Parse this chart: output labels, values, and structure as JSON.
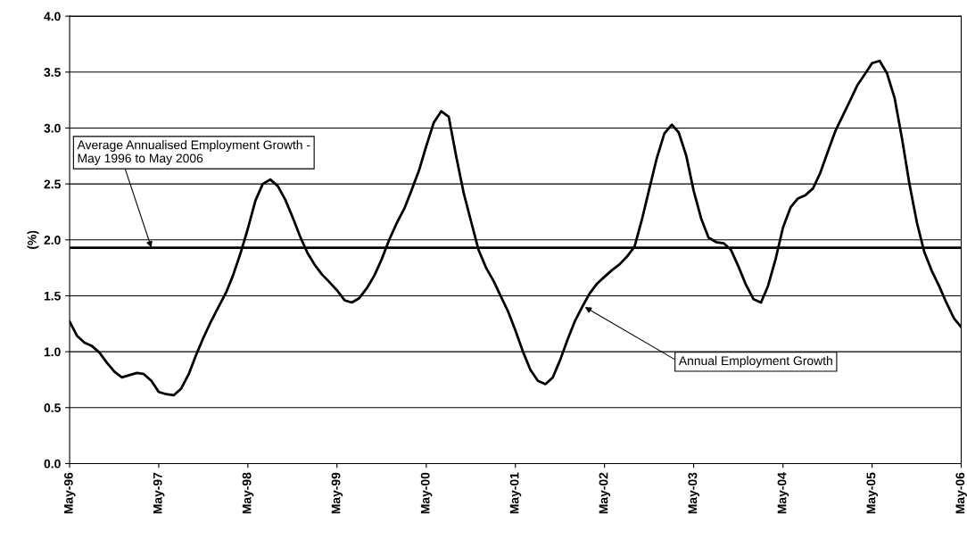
{
  "chart_data": {
    "type": "line",
    "ylabel": "(%)",
    "x": [
      "1996-05",
      "1996-06",
      "1996-07",
      "1996-08",
      "1996-09",
      "1996-10",
      "1996-11",
      "1996-12",
      "1997-01",
      "1997-02",
      "1997-03",
      "1997-04",
      "1997-05",
      "1997-06",
      "1997-07",
      "1997-08",
      "1997-09",
      "1997-10",
      "1997-11",
      "1997-12",
      "1998-01",
      "1998-02",
      "1998-03",
      "1998-04",
      "1998-05",
      "1998-06",
      "1998-07",
      "1998-08",
      "1998-09",
      "1998-10",
      "1998-11",
      "1998-12",
      "1999-01",
      "1999-02",
      "1999-03",
      "1999-04",
      "1999-05",
      "1999-06",
      "1999-07",
      "1999-08",
      "1999-09",
      "1999-10",
      "1999-11",
      "1999-12",
      "2000-01",
      "2000-02",
      "2000-03",
      "2000-04",
      "2000-05",
      "2000-06",
      "2000-07",
      "2000-08",
      "2000-09",
      "2000-10",
      "2000-11",
      "2000-12",
      "2001-01",
      "2001-02",
      "2001-03",
      "2001-04",
      "2001-05",
      "2001-06",
      "2001-07",
      "2001-08",
      "2001-09",
      "2001-10",
      "2001-11",
      "2001-12",
      "2002-01",
      "2002-02",
      "2002-03",
      "2002-04",
      "2002-05",
      "2002-06",
      "2002-07",
      "2002-08",
      "2002-09",
      "2002-10",
      "2002-11",
      "2002-12",
      "2003-01",
      "2003-02",
      "2003-03",
      "2003-04",
      "2003-05",
      "2003-06",
      "2003-07",
      "2003-08",
      "2003-09",
      "2003-10",
      "2003-11",
      "2003-12",
      "2004-01",
      "2004-02",
      "2004-03",
      "2004-04",
      "2004-05",
      "2004-06",
      "2004-07",
      "2004-08",
      "2004-09",
      "2004-10",
      "2004-11",
      "2004-12",
      "2005-01",
      "2005-02",
      "2005-03",
      "2005-04",
      "2005-05",
      "2005-06",
      "2005-07",
      "2005-08",
      "2005-09",
      "2005-10",
      "2005-11",
      "2005-12",
      "2006-01",
      "2006-02",
      "2006-03",
      "2006-04",
      "2006-05"
    ],
    "series": [
      {
        "color": "#000000",
        "values": [
          1.27,
          1.14,
          1.08,
          1.05,
          0.99,
          0.9,
          0.82,
          0.77,
          0.79,
          0.81,
          0.8,
          0.74,
          0.64,
          0.62,
          0.61,
          0.67,
          0.8,
          0.97,
          1.13,
          1.27,
          1.4,
          1.53,
          1.68,
          1.88,
          2.1,
          2.35,
          2.5,
          2.54,
          2.48,
          2.36,
          2.2,
          2.03,
          1.88,
          1.77,
          1.69,
          1.62,
          1.55,
          1.46,
          1.44,
          1.48,
          1.57,
          1.68,
          1.83,
          2.0,
          2.15,
          2.28,
          2.44,
          2.62,
          2.84,
          3.05,
          3.15,
          3.1,
          2.74,
          2.42,
          2.16,
          1.91,
          1.75,
          1.63,
          1.5,
          1.36,
          1.19,
          1.0,
          0.84,
          0.74,
          0.71,
          0.77,
          0.93,
          1.11,
          1.28,
          1.41,
          1.52,
          1.61,
          1.67,
          1.73,
          1.78,
          1.85,
          1.94,
          2.18,
          2.46,
          2.73,
          2.95,
          3.03,
          2.96,
          2.75,
          2.44,
          2.19,
          2.02,
          1.98,
          1.97,
          1.91,
          1.76,
          1.6,
          1.47,
          1.44,
          1.59,
          1.83,
          2.11,
          2.29,
          2.37,
          2.4,
          2.46,
          2.6,
          2.79,
          2.97,
          3.11,
          3.25,
          3.38,
          3.48,
          3.58,
          3.6,
          3.49,
          3.27,
          2.9,
          2.5,
          2.15,
          1.89,
          1.72,
          1.58,
          1.44,
          1.3,
          1.22
        ]
      }
    ],
    "xlim": [
      "1996-05",
      "2006-05"
    ],
    "xticks": [
      {
        "value": "1996-05",
        "label": "May-96"
      },
      {
        "value": "1997-05",
        "label": "May-97"
      },
      {
        "value": "1998-05",
        "label": "May-98"
      },
      {
        "value": "1999-05",
        "label": "May-99"
      },
      {
        "value": "2000-05",
        "label": "May-00"
      },
      {
        "value": "2001-05",
        "label": "May-01"
      },
      {
        "value": "2002-05",
        "label": "May-02"
      },
      {
        "value": "2003-05",
        "label": "May-03"
      },
      {
        "value": "2004-05",
        "label": "May-04"
      },
      {
        "value": "2005-05",
        "label": "May-05"
      },
      {
        "value": "2006-05",
        "label": "May-06"
      }
    ],
    "ylim": [
      0,
      4
    ],
    "yticks": [
      {
        "value": 0,
        "label": "0.0"
      },
      {
        "value": 0.5,
        "label": "0.5"
      },
      {
        "value": 1,
        "label": "1.0"
      },
      {
        "value": 1.5,
        "label": "1.5"
      },
      {
        "value": 2,
        "label": "2.0"
      },
      {
        "value": 2.5,
        "label": "2.5"
      },
      {
        "value": 3,
        "label": "3.0"
      },
      {
        "value": 3.5,
        "label": "3.5"
      },
      {
        "value": 4,
        "label": "4.0"
      }
    ],
    "ref_lines": [
      {
        "axis": "y",
        "value": 1.93,
        "label": "Average Annualised Employment Growth -\nMay 1996 to May 2006",
        "color": "#000000"
      }
    ],
    "annotations": [
      {
        "text": "Annual Employment Growth",
        "x": "2002-02",
        "y": 1.41
      }
    ],
    "grid": "y",
    "legend": false,
    "marker": "none",
    "line_style": "solid"
  }
}
